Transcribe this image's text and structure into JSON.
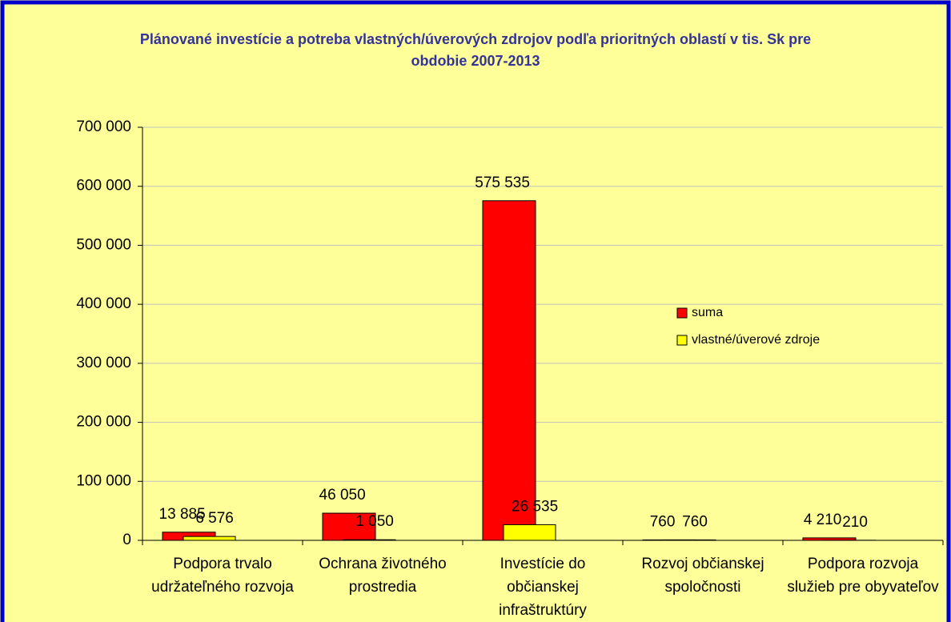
{
  "chart_data": {
    "type": "bar",
    "title": "Plánované investície a potreba vlastných/úverových zdrojov podľa prioritných oblastí v tis. Sk pre obdobie 2007-2013",
    "categories": [
      "Podpora trvalo udržateľného rozvoja",
      "Ochrana životného prostredia",
      "Investície do občianskej infraštruktúry",
      "Rozvoj občianskej spoločnosti",
      "Podpora rozvoja služieb pre obyvateľov"
    ],
    "series": [
      {
        "name": "suma",
        "color": "#ff0000",
        "values": [
          13885,
          46050,
          575535,
          760,
          4210
        ],
        "value_labels": [
          "13 885",
          "46 050",
          "575 535",
          "760",
          "4 210"
        ]
      },
      {
        "name": "vlastné/úverové zdroje",
        "color": "#ffff00",
        "values": [
          6576,
          1050,
          26535,
          760,
          210
        ],
        "value_labels": [
          "6 576",
          "1 050",
          "26 535",
          "760",
          "210"
        ]
      }
    ],
    "ylim": [
      0,
      700000
    ],
    "yticks": [
      0,
      {
        "value": 100000,
        "label": "100 000"
      },
      {
        "value": 200000,
        "label": "200 000"
      },
      {
        "value": 300000,
        "label": "300 000"
      },
      {
        "value": 400000,
        "label": "400 000"
      },
      {
        "value": 500000,
        "label": "500 000"
      },
      {
        "value": 600000,
        "label": "600 000"
      },
      {
        "value": 700000,
        "label": "700 000"
      }
    ],
    "grid": true,
    "legend": "right"
  }
}
